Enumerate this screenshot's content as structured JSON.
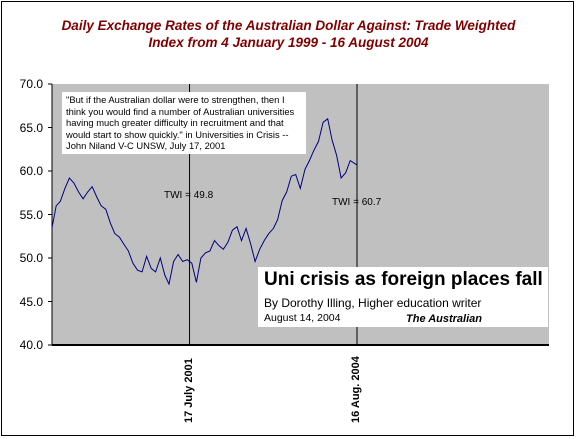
{
  "chart_data": {
    "type": "line",
    "title_line1": "Daily Exchange Rates of the Australian Dollar Against: Trade  Weighted",
    "title_line2": "Index from 4 January 1999 - 16 August 2004",
    "xlabel": "",
    "ylabel": "",
    "ylim": [
      40.0,
      70.0
    ],
    "y_ticks": [
      "70.0",
      "65.0",
      "60.0",
      "55.0",
      "50.0",
      "45.0",
      "40.0"
    ],
    "x_tick_labels": [
      "17 July 2001",
      "16 Aug. 2004"
    ],
    "grid": "vertical lines at x tick labels",
    "plot_background": "#c0c0c0",
    "line_color": "#000080",
    "x_start": "1999-01-04",
    "x_end": "2004-08-16",
    "x": [
      "1999-01-04",
      "1999-02-01",
      "1999-03-01",
      "1999-04-01",
      "1999-05-01",
      "1999-06-01",
      "1999-07-01",
      "1999-08-01",
      "1999-09-01",
      "1999-10-01",
      "1999-11-01",
      "1999-12-01",
      "2000-01-01",
      "2000-02-01",
      "2000-03-01",
      "2000-04-01",
      "2000-05-01",
      "2000-06-01",
      "2000-07-01",
      "2000-08-01",
      "2000-09-01",
      "2000-10-01",
      "2000-11-01",
      "2000-12-01",
      "2001-01-01",
      "2001-02-01",
      "2001-03-01",
      "2001-04-01",
      "2001-05-01",
      "2001-06-01",
      "2001-07-01",
      "2001-08-01",
      "2001-09-01",
      "2001-10-01",
      "2001-11-01",
      "2001-12-01",
      "2002-01-01",
      "2002-02-01",
      "2002-03-01",
      "2002-04-01",
      "2002-05-01",
      "2002-06-01",
      "2002-07-01",
      "2002-08-01",
      "2002-09-01",
      "2002-10-01",
      "2002-11-01",
      "2002-12-01",
      "2003-01-01",
      "2003-02-01",
      "2003-03-01",
      "2003-04-01",
      "2003-05-01",
      "2003-06-01",
      "2003-07-01",
      "2003-08-01",
      "2003-09-01",
      "2003-10-01",
      "2003-11-01",
      "2003-12-01",
      "2004-01-01",
      "2004-02-01",
      "2004-03-01",
      "2004-04-01",
      "2004-05-01",
      "2004-06-01",
      "2004-07-01",
      "2004-08-16"
    ],
    "values": [
      53.5,
      56.0,
      56.5,
      58.0,
      59.2,
      58.6,
      57.6,
      56.8,
      57.6,
      58.2,
      57.0,
      56.0,
      55.6,
      54.0,
      52.8,
      52.4,
      51.6,
      50.8,
      49.4,
      48.6,
      48.4,
      50.2,
      48.8,
      48.4,
      50.0,
      48.0,
      47.0,
      49.6,
      50.4,
      49.6,
      49.8,
      49.4,
      47.2,
      50.0,
      50.6,
      50.8,
      52.0,
      51.4,
      51.0,
      51.8,
      53.2,
      53.6,
      52.0,
      53.4,
      51.6,
      49.6,
      51.0,
      52.0,
      52.8,
      53.4,
      54.4,
      56.6,
      57.6,
      59.4,
      59.6,
      58.0,
      60.2,
      61.2,
      62.4,
      63.4,
      65.6,
      66.0,
      63.6,
      61.8,
      59.2,
      59.8,
      61.2,
      60.7
    ],
    "annotations": {
      "quote": "\"But if the Australian dollar were to strengthen, then I think you would find a number of Australian universities having much greater difficulty in recruitment and that would start to show quickly.\" in Universities in Crisis -- John Niland V-C UNSW, July 17, 2001",
      "twi_low": "TWI = 49.8",
      "twi_high": "TWI = 60.7",
      "headline": "Uni crisis as foreign places fall",
      "byline": "By Dorothy Illing, Higher education writer",
      "date": "August 14, 2004",
      "publication": "The Australian"
    }
  }
}
